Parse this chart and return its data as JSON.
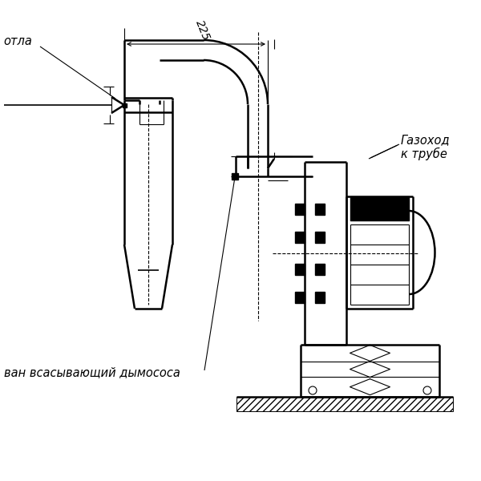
{
  "bg_color": "#ffffff",
  "line_color": "#000000",
  "lw_main": 1.8,
  "lw_thin": 0.8,
  "lw_medium": 1.2,
  "label_kotla": "отла",
  "label_gazokhod_1": "Газоход",
  "label_gazokhod_2": "к трубе",
  "label_vsan": "ван всасывающий дымососа",
  "dim_225": "225",
  "font_size_label": 10.5,
  "font_size_dim": 10
}
